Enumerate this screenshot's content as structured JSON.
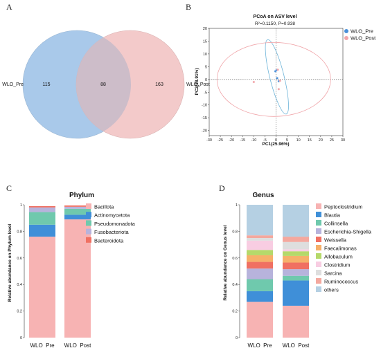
{
  "panels": {
    "A": "A",
    "B": "B",
    "C": "C",
    "D": "D"
  },
  "colors": {
    "pre_fill": "#a9c9ea",
    "post_fill": "#f3caca",
    "overlap_fill": "#cdbdc9",
    "pre_point": "#4a90d9",
    "post_point": "#f2a6aa",
    "ellipse_pre": "#6bb3d8",
    "ellipse_post": "#f0a6aa"
  },
  "chart_data": [
    {
      "type": "venn",
      "sets": [
        {
          "name": "WLO_Pre",
          "only": 115
        },
        {
          "name": "WLO_Post",
          "only": 163
        }
      ],
      "intersection": 88
    },
    {
      "type": "scatter",
      "title": "PCoA on ASV level",
      "subtitle": "R²=0.1150, P=0.938",
      "xlabel": "PC1(25.96%)",
      "ylabel": "PC2(18.91%)",
      "xlim": [
        -30,
        30
      ],
      "ylim": [
        -22,
        20
      ],
      "xticks": [
        -30,
        -25,
        -20,
        -15,
        -10,
        -5,
        0,
        5,
        10,
        15,
        20,
        25,
        30
      ],
      "yticks": [
        20,
        15,
        10,
        5,
        0,
        -5,
        -10,
        -15,
        -20
      ],
      "legend_position": "top-right",
      "series": [
        {
          "name": "WLO_Pre",
          "color": "#4a90d9",
          "points": [
            [
              -0.3,
              3.2
            ],
            [
              0.2,
              3.6
            ],
            [
              1.2,
              -0.7
            ],
            [
              0.5,
              0.5
            ]
          ]
        },
        {
          "name": "WLO_Post",
          "color": "#f2a6aa",
          "points": [
            [
              0.8,
              3.8
            ],
            [
              -10.0,
              -1.0
            ],
            [
              1.2,
              -3.8
            ],
            [
              1.8,
              -0.5
            ]
          ]
        }
      ],
      "ellipses": [
        {
          "series": "WLO_Pre",
          "cx": 0.4,
          "cy": 1.0,
          "rx": 3.2,
          "ry": 15.0,
          "angle_deg": -14
        },
        {
          "series": "WLO_Post",
          "cx": -1.0,
          "cy": 0.0,
          "rx": 25.5,
          "ry": 14.5,
          "angle_deg": 0
        }
      ]
    },
    {
      "type": "bar",
      "stacked": true,
      "title": "Phylum",
      "ylabel": "Relative abundance on Phylum level",
      "categories": [
        "WLO_Pre",
        "WLO_Post"
      ],
      "ylim": [
        0,
        1
      ],
      "yticks": [
        0,
        0.2,
        0.4,
        0.6,
        0.8,
        1
      ],
      "series": [
        {
          "name": "Bacillota",
          "color": "#f7b3b3",
          "values": [
            0.76,
            0.89
          ]
        },
        {
          "name": "Actinomycetota",
          "color": "#3f8fd8",
          "values": [
            0.09,
            0.035
          ]
        },
        {
          "name": "Pseudomonadota",
          "color": "#6fc9ad",
          "values": [
            0.095,
            0.045
          ]
        },
        {
          "name": "Fusobacteriota",
          "color": "#b7b3dc",
          "values": [
            0.035,
            0.015
          ]
        },
        {
          "name": "Bacteroidota",
          "color": "#f07062",
          "values": [
            0.01,
            0.01
          ]
        }
      ]
    },
    {
      "type": "bar",
      "stacked": true,
      "title": "Genus",
      "ylabel": "Relative abundance on Genus level",
      "categories": [
        "WLO_Pre",
        "WLO_Post"
      ],
      "ylim": [
        0,
        1
      ],
      "yticks": [
        0,
        0.2,
        0.4,
        0.6,
        0.8,
        1
      ],
      "series": [
        {
          "name": "Peptoclostridium",
          "color": "#f7b3b3",
          "values": [
            0.27,
            0.24
          ]
        },
        {
          "name": "Blautia",
          "color": "#3f8fd8",
          "values": [
            0.08,
            0.19
          ]
        },
        {
          "name": "Collinsella",
          "color": "#6fc9ad",
          "values": [
            0.09,
            0.035
          ]
        },
        {
          "name": "Escherichia-Shigella",
          "color": "#b7b3dc",
          "values": [
            0.08,
            0.05
          ]
        },
        {
          "name": "Weissella",
          "color": "#f07062",
          "values": [
            0.05,
            0.05
          ]
        },
        {
          "name": "Faecalimonas",
          "color": "#f6b06a",
          "values": [
            0.05,
            0.05
          ]
        },
        {
          "name": "Allobaculum",
          "color": "#b5d96a",
          "values": [
            0.04,
            0.035
          ]
        },
        {
          "name": "Clostridium",
          "color": "#f8cde2",
          "values": [
            0.07,
            0.015
          ]
        },
        {
          "name": "Sarcina",
          "color": "#dedede",
          "values": [
            0.02,
            0.055
          ]
        },
        {
          "name": "Ruminococcus",
          "color": "#f4a89e",
          "values": [
            0.02,
            0.04
          ]
        },
        {
          "name": "others",
          "color": "#b5d0e3",
          "values": [
            0.23,
            0.24
          ]
        }
      ]
    }
  ]
}
